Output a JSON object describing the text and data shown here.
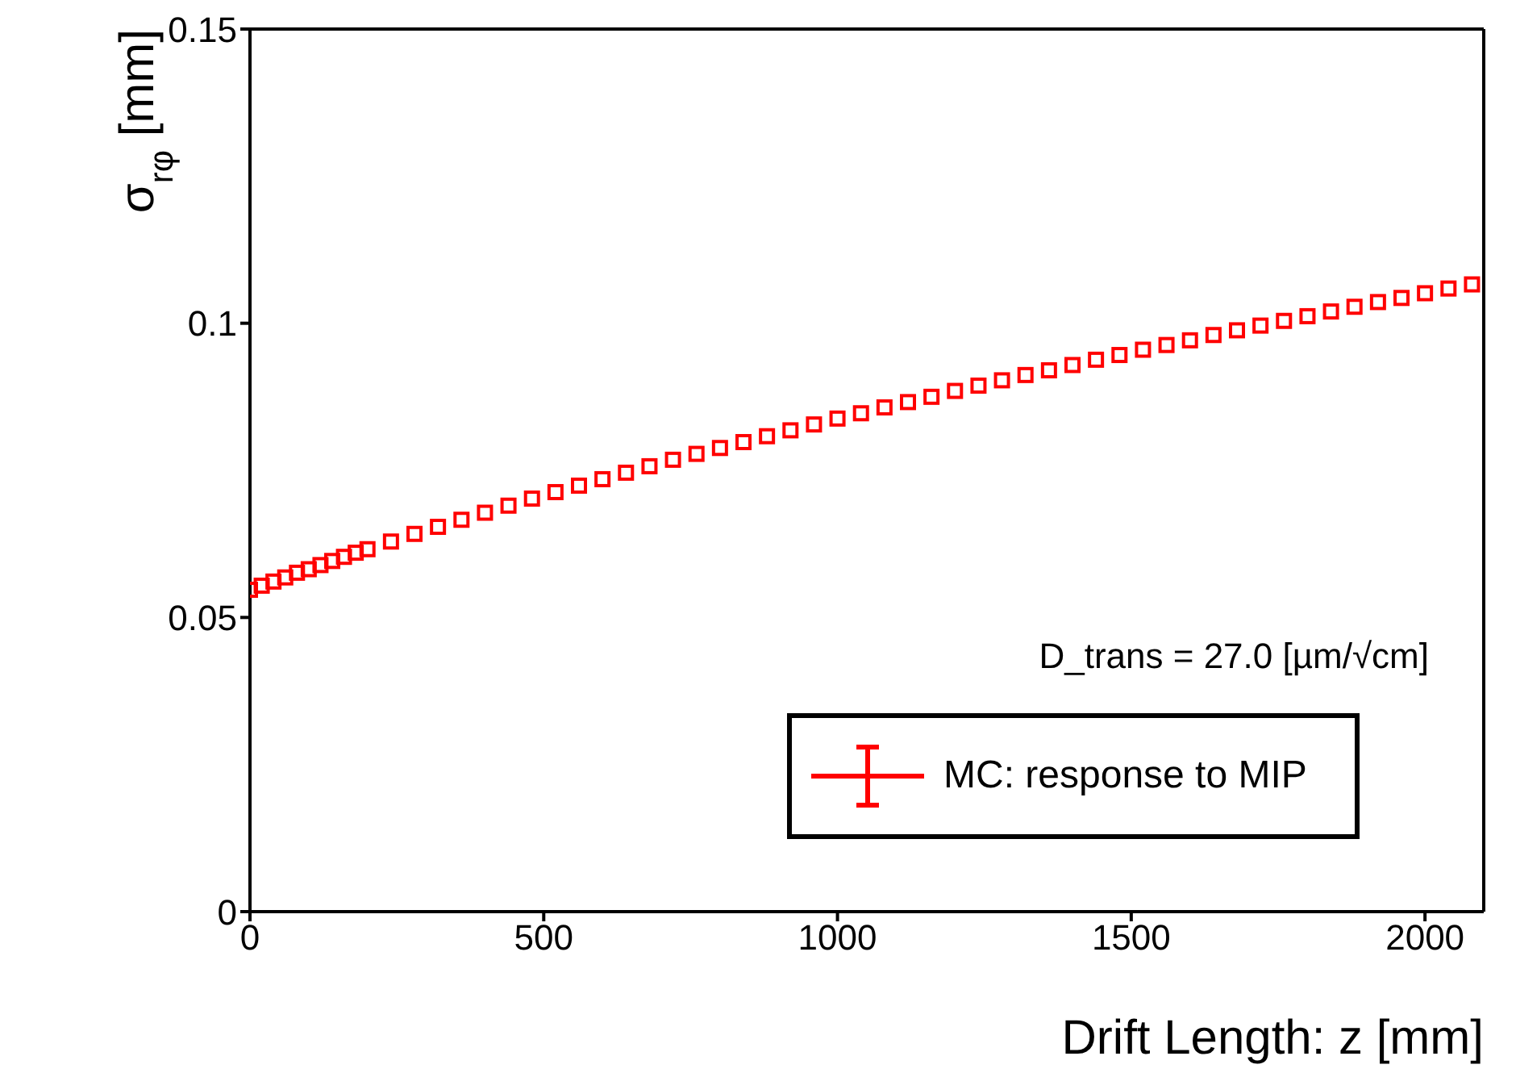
{
  "chart_data": {
    "type": "scatter",
    "xlabel": "Drift Length: z [mm]",
    "ylabel": "σ$_{rφ}$ [mm]",
    "annotations": [
      "D_trans = 27.0 [µm/√cm]"
    ],
    "xlim": [
      0,
      2100
    ],
    "xticks": [
      0,
      500,
      1000,
      1500,
      2000
    ],
    "ylim": [
      0,
      0.15
    ],
    "yticks": [
      0,
      0.05,
      0.1,
      0.15
    ],
    "grid": false,
    "legend": "bottom right",
    "marker": "square",
    "series": [
      {
        "name": "MC: response to MIP",
        "color": "#ff0000",
        "x": [
          0,
          20,
          40,
          60,
          80,
          100,
          120,
          140,
          160,
          180,
          200,
          240,
          280,
          320,
          360,
          400,
          440,
          480,
          520,
          560,
          600,
          640,
          680,
          720,
          760,
          800,
          840,
          880,
          920,
          960,
          1000,
          1040,
          1080,
          1120,
          1160,
          1200,
          1240,
          1280,
          1320,
          1360,
          1400,
          1440,
          1480,
          1520,
          1560,
          1600,
          1640,
          1680,
          1720,
          1760,
          1800,
          1840,
          1880,
          1920,
          1960,
          2000,
          2040,
          2080
        ],
        "values": [
          0.0547,
          0.0554,
          0.0561,
          0.0568,
          0.0576,
          0.0582,
          0.0589,
          0.0596,
          0.0603,
          0.061,
          0.0616,
          0.0629,
          0.0642,
          0.0654,
          0.0666,
          0.0678,
          0.069,
          0.0702,
          0.0713,
          0.0724,
          0.0735,
          0.0746,
          0.0757,
          0.0768,
          0.0778,
          0.0788,
          0.0798,
          0.0808,
          0.0818,
          0.0828,
          0.0838,
          0.0847,
          0.0857,
          0.0866,
          0.0875,
          0.0885,
          0.0894,
          0.0903,
          0.0912,
          0.092,
          0.0929,
          0.0938,
          0.0946,
          0.0955,
          0.0963,
          0.0971,
          0.098,
          0.0988,
          0.0996,
          0.1004,
          0.1012,
          0.102,
          0.1028,
          0.1036,
          0.1043,
          0.1051,
          0.1059,
          0.1066
        ]
      }
    ]
  }
}
